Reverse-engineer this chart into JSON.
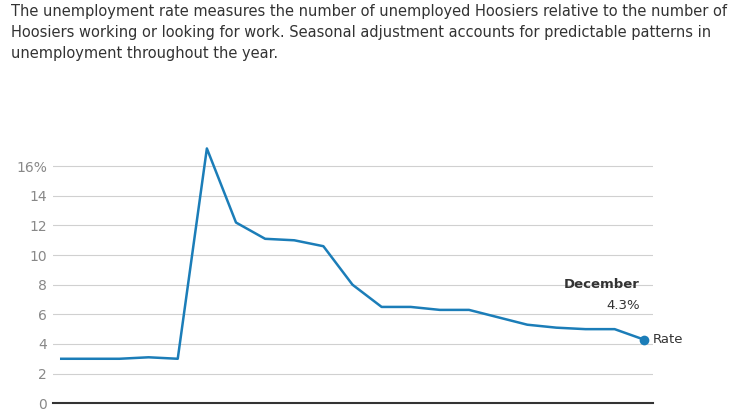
{
  "subtitle": "The unemployment rate measures the number of unemployed Hoosiers relative to the number of\nHoosiers working or looking for work. Seasonal adjustment accounts for predictable patterns in\nunemployment throughout the year.",
  "x_values": [
    0,
    1,
    2,
    3,
    4,
    5,
    6,
    7,
    8,
    9,
    10,
    11,
    12,
    13,
    14,
    15,
    16,
    17,
    18,
    19,
    20
  ],
  "y_values": [
    3.0,
    3.0,
    3.0,
    3.1,
    3.0,
    17.2,
    12.2,
    11.1,
    11.0,
    10.6,
    8.0,
    6.5,
    6.5,
    6.3,
    6.3,
    5.8,
    5.3,
    5.1,
    5.0,
    5.0,
    4.3
  ],
  "line_color": "#1b7db8",
  "marker_color": "#1b7db8",
  "ylim": [
    0,
    19.0
  ],
  "yticks": [
    0,
    2,
    4,
    6,
    8,
    10,
    12,
    14,
    16
  ],
  "ytick_labels": [
    "0",
    "2",
    "4",
    "6",
    "8",
    "10",
    "12",
    "14",
    "16%"
  ],
  "annotation_label_bold": "December",
  "annotation_value": "4.3%",
  "legend_label": "Rate",
  "background_color": "#ffffff",
  "grid_color": "#d0d0d0",
  "text_color": "#333333",
  "subtitle_fontsize": 10.5,
  "axis_fontsize": 10,
  "line_width": 1.8,
  "marker_size": 7
}
